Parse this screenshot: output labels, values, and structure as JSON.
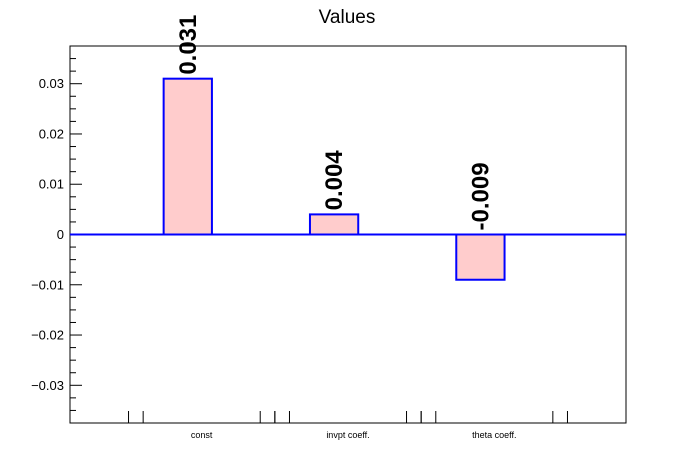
{
  "chart_data": {
    "type": "bar",
    "title": "Values",
    "xlabel": "",
    "ylabel": "",
    "categories": [
      "const",
      "invpt coeff.",
      "theta coeff."
    ],
    "values": [
      0.031,
      0.004,
      -0.009
    ],
    "data_labels": [
      "0.031",
      "0.004",
      "-0.009"
    ],
    "ylim": [
      -0.0375,
      0.0375
    ],
    "yticks": [
      -0.03,
      -0.02,
      -0.01,
      0,
      0.01,
      0.02,
      0.03
    ],
    "ytick_labels": [
      "−0.03",
      "−0.02",
      "−0.01",
      "0",
      "0.01",
      "0.02",
      "0.03"
    ],
    "bar_fill": "#ffcccc",
    "bar_stroke": "#0000ff",
    "zero_line_color": "#0000ff",
    "grid": false,
    "legend": "none"
  }
}
